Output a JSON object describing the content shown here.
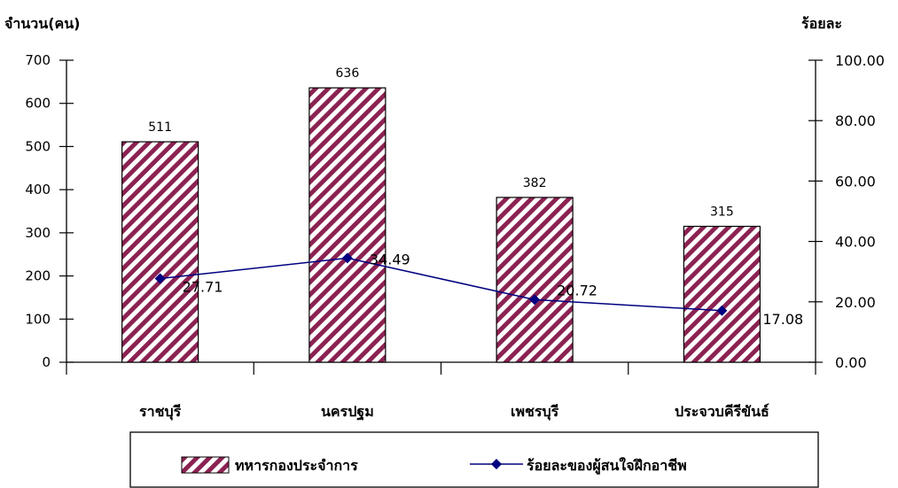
{
  "chart_data": {
    "type": "bar",
    "categories": [
      "ราชบุรี",
      "นครปฐม",
      "เพชรบุรี",
      "ประจวบคีรีขันธ์"
    ],
    "series": [
      {
        "name": "ทหารกองประจำการ",
        "type": "bar",
        "axis": "left",
        "values": [
          511,
          636,
          382,
          315
        ],
        "color": "#8b2252",
        "pattern": "diagonal-stripes"
      },
      {
        "name": "ร้อยละของผู้สนใจฝึกอาชีพ",
        "type": "line",
        "axis": "right",
        "values": [
          27.71,
          34.49,
          20.72,
          17.08
        ],
        "value_labels": [
          "27.71",
          "34.49",
          "20.72",
          "17.08"
        ],
        "color": "#000080",
        "marker": "diamond"
      }
    ],
    "y_left": {
      "label": "จำนวน(คน)",
      "ylim": [
        0,
        700
      ],
      "ticks": [
        "0",
        "100",
        "200",
        "300",
        "400",
        "500",
        "600",
        "700"
      ]
    },
    "y_right": {
      "label": "ร้อยละ",
      "ylim": [
        0,
        100
      ],
      "ticks": [
        "0.00",
        "20.00",
        "40.00",
        "60.00",
        "80.00",
        "100.00"
      ]
    },
    "grid": false,
    "legend_position": "bottom"
  }
}
